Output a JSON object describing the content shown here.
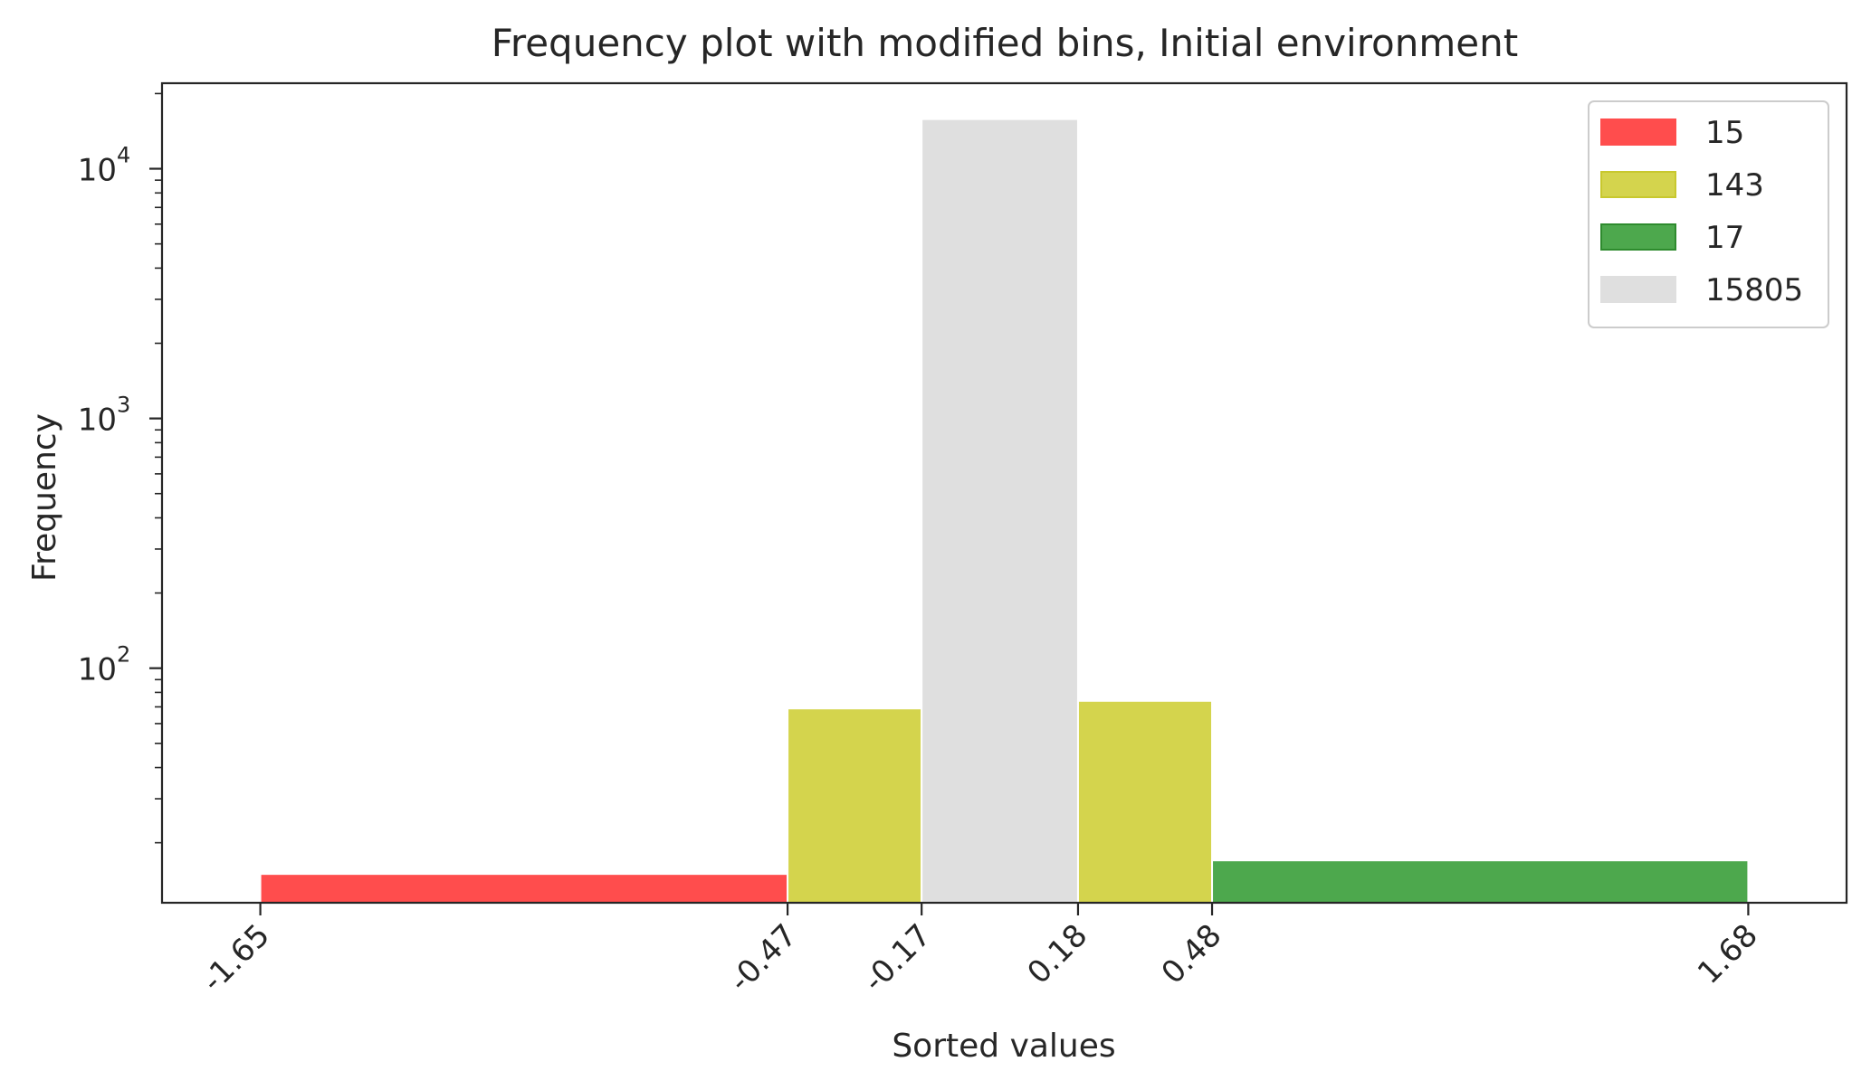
{
  "chart_data": {
    "type": "bar",
    "title": "Frequency plot with modified bins, Initial environment",
    "xlabel": "Sorted values",
    "ylabel": "Frequency",
    "yscale": "log",
    "ylim": [
      11.5,
      22000
    ],
    "xlim": [
      -1.87,
      1.9
    ],
    "grid": false,
    "legend_position": "top-right",
    "x_ticks": [
      "-1.65",
      "-0.47",
      "-0.17",
      "0.18",
      "0.48",
      "1.68"
    ],
    "y_ticks": [
      {
        "value": 100,
        "base": "10",
        "exp": "2"
      },
      {
        "value": 1000,
        "base": "10",
        "exp": "3"
      },
      {
        "value": 10000,
        "base": "10",
        "exp": "4"
      }
    ],
    "bins": [
      {
        "x0": -1.65,
        "x1": -0.47,
        "value": 15,
        "color": "#ff4d4d"
      },
      {
        "x0": -0.47,
        "x1": -0.17,
        "value": 69,
        "color": "#d4d44d"
      },
      {
        "x0": -0.17,
        "x1": 0.18,
        "value": 15805,
        "color": "#dfdfdf"
      },
      {
        "x0": 0.18,
        "x1": 0.48,
        "value": 74,
        "color": "#d4d44d"
      },
      {
        "x0": 0.48,
        "x1": 1.68,
        "value": 17,
        "color": "#4da84d"
      }
    ],
    "legend": [
      {
        "label": "15",
        "color": "#ff4d4d",
        "edge": "#ff4d4d"
      },
      {
        "label": "143",
        "color": "#d4d44d",
        "edge": "#c8c82e"
      },
      {
        "label": "17",
        "color": "#4da84d",
        "edge": "#2e8b2e"
      },
      {
        "label": "15805",
        "color": "#dfdfdf",
        "edge": "#dfdfdf"
      }
    ]
  }
}
